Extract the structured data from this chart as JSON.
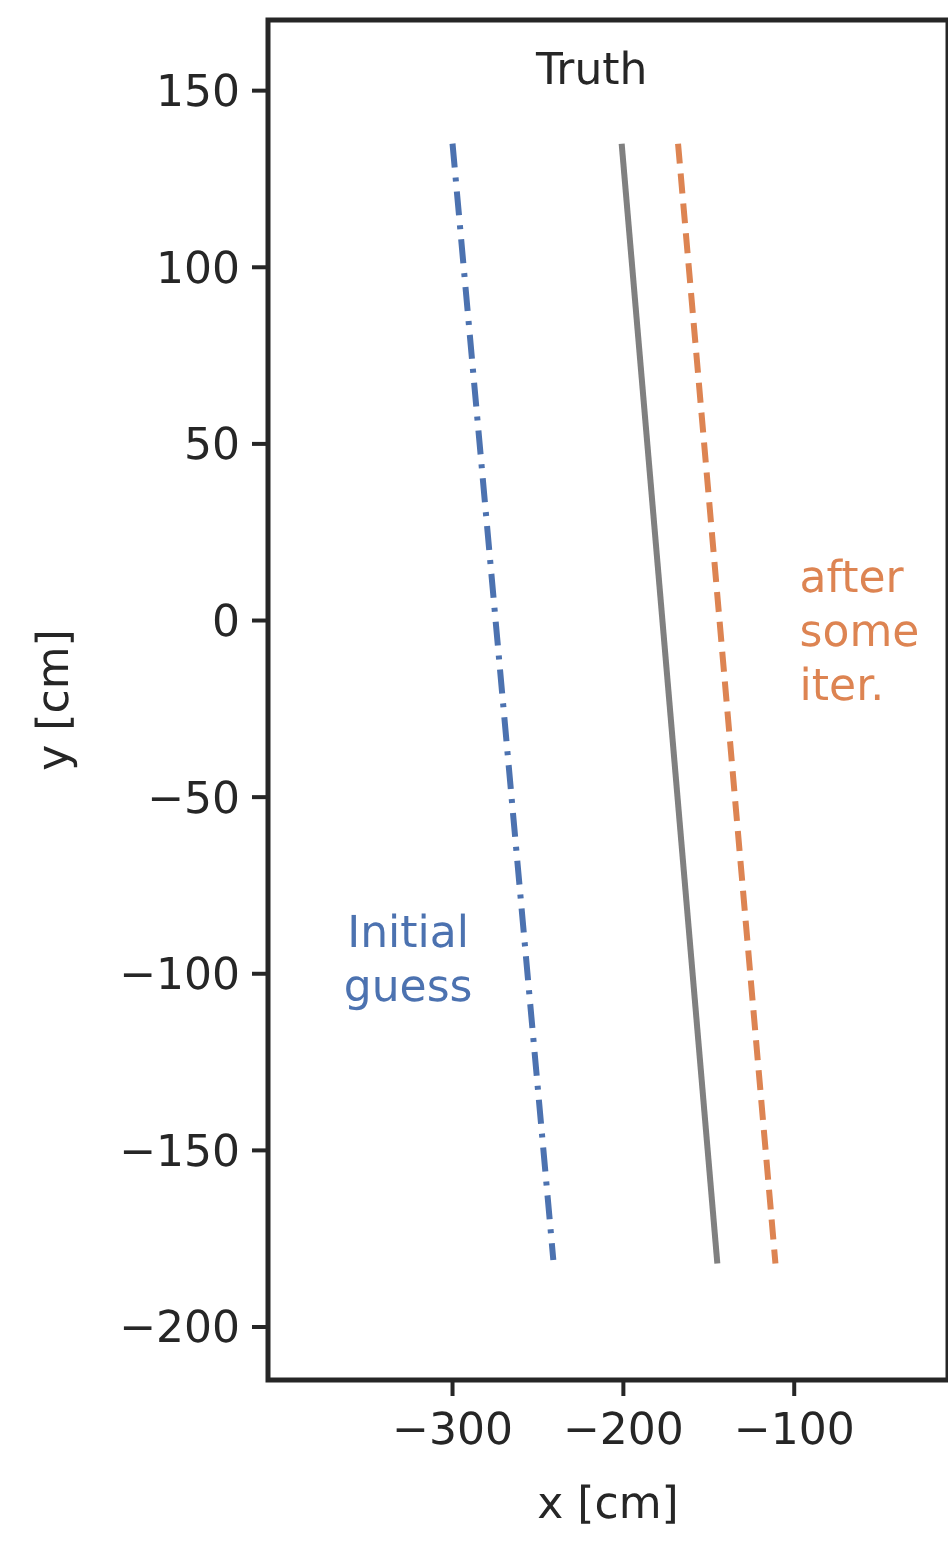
{
  "chart_data": {
    "type": "line",
    "xlabel": "x [cm]",
    "ylabel": "y [cm]",
    "xlim": [
      -408,
      -10
    ],
    "ylim": [
      -215,
      170
    ],
    "xticks": [
      {
        "value": -300,
        "label": "−300"
      },
      {
        "value": -200,
        "label": "−200"
      },
      {
        "value": -100,
        "label": "−100"
      }
    ],
    "yticks": [
      {
        "value": -200,
        "label": "−200"
      },
      {
        "value": -150,
        "label": "−150"
      },
      {
        "value": -100,
        "label": "−100"
      },
      {
        "value": -50,
        "label": "−50"
      },
      0,
      50,
      100,
      150
    ],
    "grid": false,
    "legend": false,
    "series": [
      {
        "name": "Initial guess",
        "color": "#4c72b0",
        "line_style": "dashdot",
        "x": [
          -300,
          -241
        ],
        "values": [
          135,
          -181
        ]
      },
      {
        "name": "Truth",
        "color": "#808080",
        "line_style": "solid",
        "x": [
          -201,
          -145
        ],
        "values": [
          135,
          -182
        ]
      },
      {
        "name": "after some iter.",
        "color": "#dd8452",
        "line_style": "dashed",
        "x": [
          -168,
          -111
        ],
        "values": [
          135,
          -182
        ]
      }
    ]
  }
}
